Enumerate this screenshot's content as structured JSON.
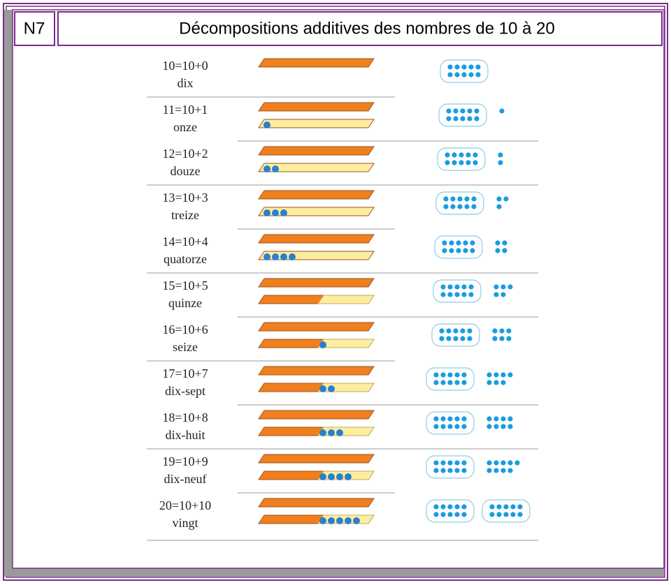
{
  "header": {
    "code": "N7",
    "title": "Décompositions additives des nombres de 10 à 20"
  },
  "rows": [
    {
      "equation": "10=10+0",
      "word": "dix"
    },
    {
      "equation": "11=10+1",
      "word": "onze"
    },
    {
      "equation": "12=10+2",
      "word": "douze"
    },
    {
      "equation": "13=10+3",
      "word": "treize"
    },
    {
      "equation": "14=10+4",
      "word": "quatorze"
    },
    {
      "equation": "15=10+5",
      "word": "quinze"
    },
    {
      "equation": "16=10+6",
      "word": "seize"
    },
    {
      "equation": "17=10+7",
      "word": "dix-sept"
    },
    {
      "equation": "18=10+8",
      "word": "dix-huit"
    },
    {
      "equation": "19=10+9",
      "word": "dix-neuf"
    },
    {
      "equation": "20=10+10",
      "word": "vingt"
    }
  ]
}
